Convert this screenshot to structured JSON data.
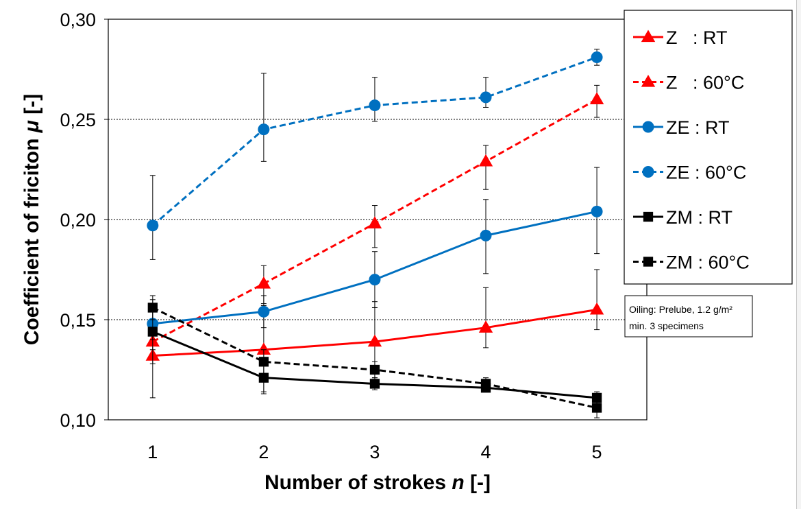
{
  "chart_data": {
    "type": "line",
    "xlabel": "Number of strokes n [-]",
    "xlabel_main": "Number of strokes ",
    "xlabel_var": "n",
    "xlabel_tail": " [-]",
    "ylabel": "Coefficient of friciton μ [-]",
    "ylabel_main": "Coefficient of friciton ",
    "ylabel_var": "μ",
    "ylabel_tail": " [-]",
    "x": [
      1,
      2,
      3,
      4,
      5
    ],
    "xticks": [
      "1",
      "2",
      "3",
      "4",
      "5"
    ],
    "xlim": [
      0.6,
      5.45
    ],
    "ylim": [
      0.1,
      0.3
    ],
    "yticks": [
      "0,10",
      "0,15",
      "0,20",
      "0,25",
      "0,30"
    ],
    "ytick_values": [
      0.1,
      0.15,
      0.2,
      0.25,
      0.3
    ],
    "grid": "horizontal dotted at 0,15 0,20 0,25",
    "legend_position": "right",
    "series": [
      {
        "name": "Z   : RT",
        "color": "#ff0000",
        "dash": "solid",
        "marker": "triangle",
        "values": [
          0.132,
          0.135,
          0.139,
          0.146,
          0.155
        ],
        "err_low": [
          0.111,
          0.114,
          0.118,
          0.136,
          0.145
        ],
        "err_high": [
          0.158,
          0.157,
          0.159,
          0.166,
          0.175
        ]
      },
      {
        "name": "Z   : 60°C",
        "color": "#ff0000",
        "dash": "dashed",
        "marker": "triangle",
        "values": [
          0.139,
          0.168,
          0.198,
          0.229,
          0.26
        ],
        "err_low": [
          0.135,
          0.158,
          0.186,
          0.215,
          0.251
        ],
        "err_high": [
          0.143,
          0.177,
          0.207,
          0.237,
          0.267
        ]
      },
      {
        "name": "ZE : RT",
        "color": "#0070c0",
        "dash": "solid",
        "marker": "circle",
        "values": [
          0.148,
          0.154,
          0.17,
          0.192,
          0.204
        ],
        "err_low": [
          0.14,
          0.146,
          0.156,
          0.173,
          0.183
        ],
        "err_high": [
          0.156,
          0.162,
          0.184,
          0.21,
          0.226
        ]
      },
      {
        "name": "ZE : 60°C",
        "color": "#0070c0",
        "dash": "dashed",
        "marker": "circle",
        "values": [
          0.197,
          0.245,
          0.257,
          0.261,
          0.281
        ],
        "err_low": [
          0.18,
          0.229,
          0.249,
          0.256,
          0.277
        ],
        "err_high": [
          0.222,
          0.273,
          0.271,
          0.271,
          0.285
        ]
      },
      {
        "name": "ZM : RT",
        "color": "#000000",
        "dash": "solid",
        "marker": "square",
        "values": [
          0.144,
          0.121,
          0.118,
          0.116,
          0.111
        ],
        "err_low": [
          0.128,
          0.113,
          0.115,
          0.114,
          0.107
        ],
        "err_high": [
          0.16,
          0.129,
          0.121,
          0.118,
          0.114
        ]
      },
      {
        "name": "ZM : 60°C",
        "color": "#000000",
        "dash": "dashed",
        "marker": "square",
        "values": [
          0.156,
          0.129,
          0.125,
          0.118,
          0.106
        ],
        "err_low": [
          0.15,
          0.123,
          0.121,
          0.115,
          0.101
        ],
        "err_high": [
          0.162,
          0.135,
          0.129,
          0.121,
          0.11
        ]
      }
    ],
    "annotation": {
      "line1": "Oiling: Prelube, 1.2 g/m²",
      "line2": "min. 3 specimens"
    }
  }
}
